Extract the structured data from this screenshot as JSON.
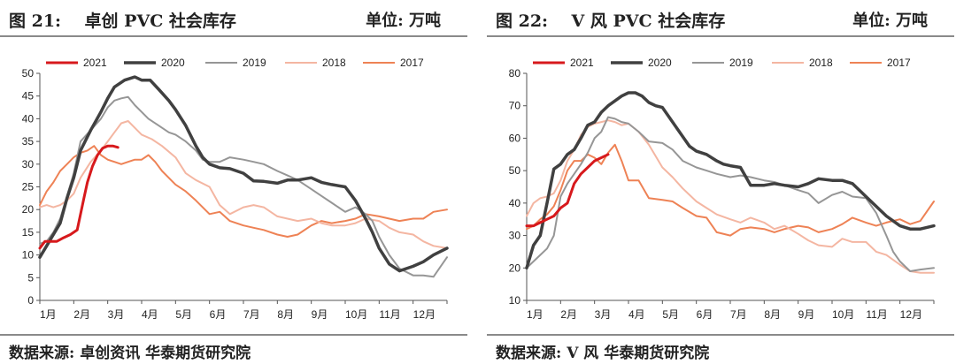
{
  "chart_data": [
    {
      "type": "line",
      "figure_label": "图 21:",
      "title": "卓创 PVC 社会库存",
      "unit_label": "单位: 万吨",
      "source": "数据来源: 卓创资讯 华泰期货研究院",
      "ylim": [
        0,
        50
      ],
      "yticks": [
        0,
        5,
        10,
        15,
        20,
        25,
        30,
        35,
        40,
        45,
        50
      ],
      "x_labels": [
        "1月",
        "2月",
        "3月",
        "4月",
        "5月",
        "6月",
        "7月",
        "8月",
        "9月",
        "10月",
        "11月",
        "12月"
      ],
      "xlim": [
        1,
        13
      ],
      "legend_position": "top",
      "series": [
        {
          "name": "2021",
          "color": "#d7191c",
          "width": 3,
          "x": [
            1.0,
            1.15,
            1.3,
            1.5,
            1.7,
            1.9,
            2.1,
            2.3,
            2.4,
            2.55,
            2.7,
            2.85,
            3.0,
            3.15,
            3.3
          ],
          "values": [
            11.5,
            13,
            13,
            13,
            13.8,
            14.5,
            15.5,
            22.5,
            26,
            29.5,
            32,
            33.5,
            34,
            34,
            33.7
          ]
        },
        {
          "name": "2020",
          "color": "#404040",
          "width": 3.5,
          "x": [
            1.0,
            1.2,
            1.4,
            1.6,
            1.8,
            2.0,
            2.2,
            2.5,
            2.8,
            3.0,
            3.2,
            3.5,
            3.8,
            4.0,
            4.25,
            4.5,
            4.8,
            5.0,
            5.3,
            5.6,
            5.8,
            6.0,
            6.3,
            6.6,
            7.0,
            7.3,
            7.6,
            8.0,
            8.3,
            8.6,
            9.0,
            9.3,
            9.6,
            10.0,
            10.3,
            10.6,
            10.8,
            11.0,
            11.3,
            11.6,
            12.0,
            12.3,
            12.6,
            13.0
          ],
          "values": [
            9.5,
            12,
            14.5,
            17,
            22.5,
            27,
            33,
            37.5,
            41.5,
            44.5,
            47,
            48.5,
            49.2,
            48.5,
            48.5,
            46.5,
            44,
            42,
            38.5,
            34,
            31.5,
            30,
            29.2,
            29,
            28,
            26.3,
            26.2,
            25.8,
            26.5,
            26.5,
            27,
            26,
            25.5,
            25,
            22,
            18,
            15,
            11.5,
            8,
            6.5,
            7.5,
            8.5,
            10,
            11.5
          ]
        },
        {
          "name": "2019",
          "color": "#969696",
          "width": 2,
          "x": [
            1.0,
            1.2,
            1.4,
            1.6,
            1.8,
            2.0,
            2.2,
            2.5,
            2.8,
            3.0,
            3.2,
            3.4,
            3.6,
            3.8,
            4.0,
            4.2,
            4.5,
            4.8,
            5.0,
            5.3,
            5.6,
            5.8,
            6.0,
            6.3,
            6.6,
            7.0,
            7.3,
            7.6,
            8.0,
            8.3,
            8.6,
            9.0,
            9.3,
            9.6,
            10.0,
            10.3,
            10.6,
            10.8,
            11.0,
            11.3,
            11.6,
            12.0,
            12.3,
            12.6,
            13.0
          ],
          "values": [
            12.5,
            13,
            15,
            18,
            23,
            28,
            35,
            37.5,
            40,
            42.5,
            44,
            44.5,
            44.8,
            43,
            41.5,
            40,
            38.5,
            37,
            36.5,
            35,
            33,
            31,
            30.5,
            30.5,
            31.5,
            31,
            30.5,
            30,
            28.5,
            27.5,
            26.5,
            24.5,
            23,
            21.5,
            19.5,
            20.5,
            19,
            17.5,
            14,
            10,
            7,
            5.5,
            5.5,
            5.2,
            9.5
          ]
        },
        {
          "name": "2018",
          "color": "#f4b6a2",
          "width": 2,
          "x": [
            1.0,
            1.2,
            1.4,
            1.6,
            1.8,
            2.0,
            2.2,
            2.5,
            2.8,
            3.0,
            3.2,
            3.4,
            3.6,
            3.8,
            4.0,
            4.3,
            4.6,
            5.0,
            5.3,
            5.6,
            6.0,
            6.3,
            6.6,
            7.0,
            7.3,
            7.6,
            8.0,
            8.3,
            8.6,
            9.0,
            9.3,
            9.6,
            10.0,
            10.3,
            10.6,
            11.0,
            11.3,
            11.6,
            12.0,
            12.3,
            12.6,
            13.0
          ],
          "values": [
            20.5,
            21,
            20.5,
            21,
            22,
            23.5,
            27,
            30.5,
            33,
            35,
            37,
            39,
            39.5,
            38,
            36.5,
            35.5,
            34,
            31.5,
            28,
            26.5,
            25,
            21,
            19,
            20.5,
            21,
            20.5,
            18.5,
            18,
            17.5,
            18,
            17,
            16.5,
            16.5,
            17,
            18,
            17.5,
            16,
            15,
            14.5,
            13,
            12,
            11.5
          ]
        },
        {
          "name": "2017",
          "color": "#ee8255",
          "width": 2,
          "x": [
            1.0,
            1.2,
            1.4,
            1.6,
            1.8,
            2.0,
            2.2,
            2.4,
            2.6,
            2.8,
            3.0,
            3.2,
            3.4,
            3.6,
            3.8,
            4.0,
            4.2,
            4.4,
            4.6,
            5.0,
            5.3,
            5.6,
            6.0,
            6.3,
            6.6,
            7.0,
            7.3,
            7.6,
            8.0,
            8.3,
            8.6,
            9.0,
            9.3,
            9.6,
            10.0,
            10.3,
            10.6,
            11.0,
            11.3,
            11.6,
            12.0,
            12.3,
            12.6,
            13.0
          ],
          "values": [
            21,
            24,
            26,
            28.5,
            30,
            31.5,
            32.5,
            33,
            34,
            32,
            31,
            30.5,
            30,
            30.5,
            31,
            31,
            32,
            30.5,
            28.5,
            25.5,
            24,
            22,
            19,
            19.5,
            17.5,
            16.5,
            16,
            15.5,
            14.5,
            14,
            14.5,
            16.5,
            17.5,
            17,
            17.5,
            18,
            19,
            18.5,
            18,
            17.5,
            18,
            18,
            19.5,
            20
          ]
        }
      ]
    },
    {
      "type": "line",
      "figure_label": "图 22:",
      "title": "V 风 PVC 社会库存",
      "unit_label": "单位: 万吨",
      "source": "数据来源: V 风 华泰期货研究院",
      "ylim": [
        10,
        80
      ],
      "yticks": [
        10,
        20,
        30,
        40,
        50,
        60,
        70,
        80
      ],
      "x_labels": [
        "1月",
        "2月",
        "3月",
        "4月",
        "5月",
        "6月",
        "7月",
        "8月",
        "9月",
        "10月",
        "11月",
        "12月"
      ],
      "xlim": [
        1,
        13
      ],
      "legend_position": "top",
      "series": [
        {
          "name": "2021",
          "color": "#d7191c",
          "width": 3,
          "x": [
            1.0,
            1.2,
            1.4,
            1.6,
            1.8,
            2.0,
            2.2,
            2.4,
            2.6,
            2.8,
            3.0,
            3.2,
            3.4
          ],
          "values": [
            33,
            33,
            34,
            35,
            36,
            38.5,
            40,
            46,
            49,
            51,
            53,
            54,
            55
          ]
        },
        {
          "name": "2020",
          "color": "#404040",
          "width": 3.5,
          "x": [
            1.0,
            1.2,
            1.4,
            1.6,
            1.8,
            2.0,
            2.2,
            2.4,
            2.6,
            2.8,
            3.0,
            3.2,
            3.4,
            3.6,
            3.8,
            4.0,
            4.2,
            4.4,
            4.6,
            4.8,
            5.0,
            5.3,
            5.6,
            5.8,
            6.0,
            6.3,
            6.6,
            6.8,
            7.0,
            7.3,
            7.6,
            8.0,
            8.3,
            8.6,
            9.0,
            9.3,
            9.6,
            10.0,
            10.3,
            10.6,
            11.0,
            11.3,
            11.6,
            12.0,
            12.3,
            12.6,
            13.0
          ],
          "values": [
            20,
            27,
            30,
            40,
            50.5,
            52,
            55,
            56.5,
            60,
            64,
            65,
            68,
            70,
            71.5,
            73,
            74,
            74,
            73,
            71,
            70,
            69.5,
            65,
            60.5,
            57.5,
            56,
            55,
            53,
            52,
            51.5,
            51,
            45.5,
            45.5,
            46,
            45.5,
            45,
            46,
            47.5,
            47,
            47,
            46,
            42,
            39,
            36,
            33,
            32,
            32,
            33
          ]
        },
        {
          "name": "2019",
          "color": "#969696",
          "width": 2,
          "x": [
            1.0,
            1.2,
            1.4,
            1.6,
            1.8,
            2.0,
            2.2,
            2.4,
            2.6,
            2.8,
            3.0,
            3.2,
            3.4,
            3.6,
            3.8,
            4.0,
            4.3,
            4.6,
            5.0,
            5.3,
            5.6,
            6.0,
            6.3,
            6.6,
            7.0,
            7.3,
            7.6,
            8.0,
            8.3,
            8.6,
            9.0,
            9.3,
            9.6,
            10.0,
            10.3,
            10.6,
            11.0,
            11.3,
            11.6,
            11.8,
            12.0,
            12.3,
            12.6,
            13.0
          ],
          "values": [
            20,
            22,
            24,
            26,
            30,
            42,
            46,
            49,
            52,
            55.5,
            60,
            62,
            66.5,
            66,
            65,
            64.5,
            62,
            59,
            58.5,
            56.5,
            53,
            51,
            50,
            49,
            48,
            48.5,
            48,
            47,
            46.5,
            45.5,
            44,
            43,
            40,
            42.5,
            43.5,
            42,
            41.5,
            37,
            30,
            25,
            22,
            19,
            19.5,
            20
          ]
        },
        {
          "name": "2018",
          "color": "#f4b6a2",
          "width": 2,
          "x": [
            1.0,
            1.2,
            1.4,
            1.6,
            1.8,
            2.0,
            2.2,
            2.4,
            2.6,
            2.8,
            3.0,
            3.2,
            3.4,
            3.6,
            3.8,
            4.0,
            4.3,
            4.6,
            5.0,
            5.3,
            5.6,
            6.0,
            6.3,
            6.6,
            7.0,
            7.3,
            7.6,
            8.0,
            8.3,
            8.6,
            9.0,
            9.3,
            9.6,
            10.0,
            10.3,
            10.6,
            11.0,
            11.3,
            11.6,
            12.0,
            12.3,
            12.6,
            13.0
          ],
          "values": [
            36,
            40,
            41.5,
            42,
            43,
            47,
            53,
            56.5,
            61,
            63.5,
            64.5,
            65,
            65.5,
            65,
            64,
            64.5,
            62,
            58,
            51,
            48,
            44.5,
            40.5,
            38.5,
            36.5,
            35,
            34,
            35.5,
            34,
            32,
            33,
            30.5,
            28.5,
            27,
            26.5,
            29,
            28,
            28,
            25,
            24,
            21,
            19,
            18.5,
            18.5
          ]
        },
        {
          "name": "2017",
          "color": "#ee8255",
          "width": 2,
          "x": [
            1.0,
            1.2,
            1.4,
            1.6,
            1.8,
            2.0,
            2.2,
            2.4,
            2.6,
            2.8,
            3.0,
            3.2,
            3.4,
            3.6,
            3.8,
            4.0,
            4.3,
            4.6,
            5.0,
            5.3,
            5.6,
            6.0,
            6.3,
            6.6,
            7.0,
            7.3,
            7.6,
            8.0,
            8.3,
            8.6,
            9.0,
            9.3,
            9.6,
            10.0,
            10.3,
            10.6,
            11.0,
            11.3,
            11.6,
            12.0,
            12.3,
            12.6,
            13.0
          ],
          "values": [
            32,
            33,
            35,
            36.5,
            39,
            44,
            50,
            53,
            53,
            55,
            54,
            52,
            55.5,
            58,
            53,
            47,
            47,
            41.5,
            41,
            40.5,
            38.5,
            36,
            35.5,
            31,
            30,
            32,
            32.5,
            32,
            31,
            32,
            33,
            32.5,
            31,
            32,
            33.5,
            35.5,
            34,
            33,
            34,
            35,
            33.5,
            34.5,
            40.5
          ]
        }
      ]
    }
  ]
}
